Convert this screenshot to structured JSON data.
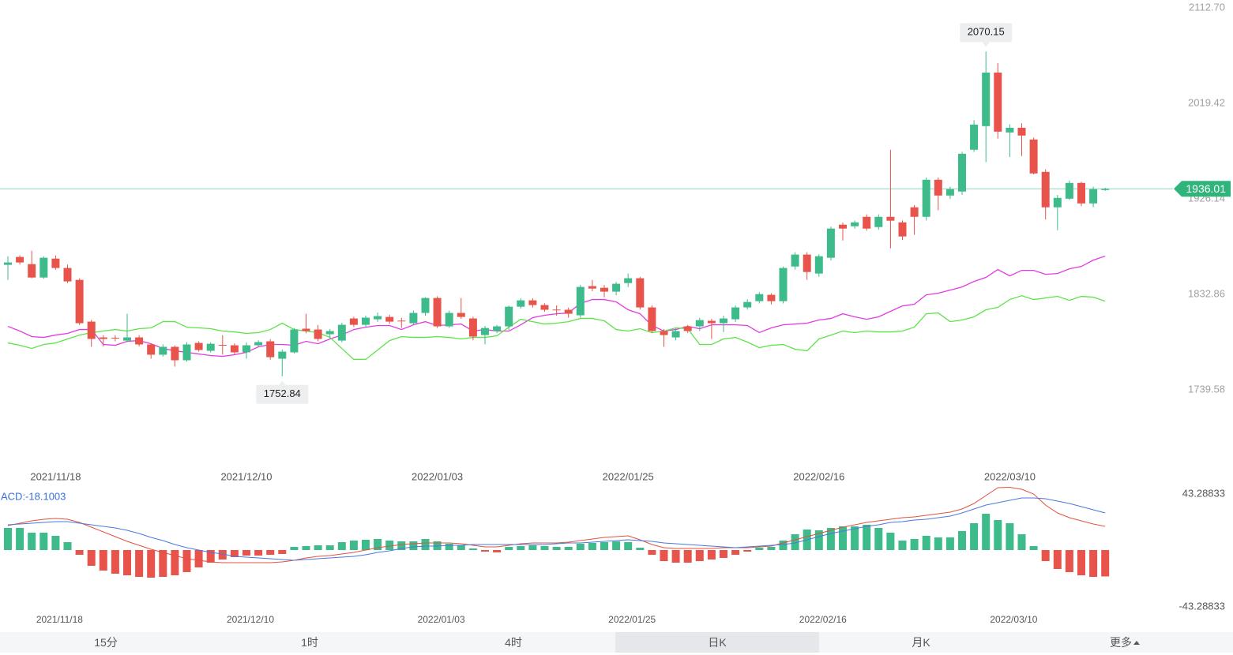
{
  "chart_data": [
    {
      "type": "candlestick",
      "categories": [
        null,
        null,
        null,
        null,
        "2021/11/18",
        null,
        null,
        null,
        null,
        null,
        null,
        null,
        null,
        null,
        null,
        null,
        null,
        null,
        null,
        null,
        "2021/12/10",
        null,
        null,
        null,
        null,
        null,
        null,
        null,
        null,
        null,
        null,
        null,
        null,
        null,
        null,
        null,
        "2022/01/03",
        null,
        null,
        null,
        null,
        null,
        null,
        null,
        null,
        null,
        null,
        null,
        null,
        null,
        null,
        null,
        "2022/01/25",
        null,
        null,
        null,
        null,
        null,
        null,
        null,
        null,
        null,
        null,
        null,
        null,
        null,
        null,
        null,
        "2022/02/16",
        null,
        null,
        null,
        null,
        null,
        null,
        null,
        null,
        null,
        null,
        null,
        null,
        null,
        null,
        null,
        "2022/03/10",
        null,
        null,
        null,
        null,
        null,
        null,
        null,
        null
      ],
      "open": [
        1861.7,
        1869.4,
        1862.4,
        1849.3,
        1867.8,
        1858.6,
        1847.0,
        1806.2,
        1790.8,
        1790.5,
        1787.7,
        1790.8,
        1783.9,
        1773.9,
        1781.6,
        1768.5,
        1785.4,
        1777.7,
        1783.5,
        1783.1,
        1776.2,
        1783.1,
        1787.0,
        1770.0,
        1776.2,
        1799.3,
        1798.5,
        1793.9,
        1787.7,
        1809.3,
        1803.1,
        1808.5,
        1810.8,
        1807.2,
        1804.7,
        1814.7,
        1829.3,
        1801.6,
        1814.7,
        1809.3,
        1793.1,
        1797.0,
        1801.6,
        1820.8,
        1827.0,
        1822.4,
        1818.0,
        1817.8,
        1812.4,
        1840.9,
        1839.3,
        1835.5,
        1843.9,
        1848.6,
        1820.1,
        1797.0,
        1790.8,
        1801.6,
        1801.6,
        1807.0,
        1804.7,
        1808.5,
        1820.1,
        1826.2,
        1832.4,
        1826.2,
        1860.1,
        1871.7,
        1853.2,
        1868.6,
        1900.9,
        1899.4,
        1908.6,
        1898.6,
        1908.6,
        1903.2,
        1917.9,
        1908.6,
        1944.8,
        1929.4,
        1933.3,
        1974.1,
        1997.2,
        2049.5,
        1991.0,
        1995.6,
        1984.1,
        1952.5,
        1917.9,
        1926.3,
        1941.7,
        1921.7,
        1934.8
      ],
      "high": [
        1870.1,
        1871,
        1875.5,
        1870,
        1870.9,
        1862,
        1848.6,
        1808,
        1793,
        1793,
        1813.9,
        1793,
        1785,
        1784,
        1783,
        1786,
        1787,
        1786,
        1793,
        1785,
        1786,
        1788,
        1789,
        1779,
        1800,
        1813.9,
        1803,
        1799,
        1805,
        1811,
        1812,
        1815,
        1813,
        1810,
        1817,
        1830,
        1831,
        1817,
        1829.3,
        1811,
        1802,
        1803,
        1822,
        1829,
        1829,
        1824,
        1822,
        1820,
        1842,
        1847,
        1842,
        1845,
        1853.2,
        1850,
        1822,
        1799,
        1800,
        1803,
        1810,
        1809,
        1812,
        1822,
        1828,
        1835,
        1834,
        1860,
        1874,
        1874,
        1872,
        1899,
        1903,
        1905,
        1911,
        1911,
        1974.1,
        1905,
        1920,
        1947,
        1947,
        1938,
        1972,
        2003,
        2070.15,
        2058.8,
        1999,
        2000,
        1986,
        1955,
        1930,
        1944,
        1943,
        1938,
        1937
      ],
      "low": [
        1847,
        1862,
        1848.5,
        1848,
        1857,
        1843.9,
        1803,
        1781.6,
        1782,
        1787,
        1786,
        1782,
        1770,
        1772,
        1762.3,
        1767,
        1777,
        1776,
        1774,
        1774,
        1770,
        1782,
        1769,
        1752.84,
        1775,
        1795,
        1787,
        1790,
        1786,
        1801,
        1801,
        1806,
        1804,
        1800,
        1803,
        1812,
        1800,
        1800,
        1809,
        1788,
        1784,
        1795,
        1798,
        1819,
        1820,
        1816,
        1812,
        1810,
        1810,
        1836,
        1830,
        1832,
        1840,
        1818,
        1795,
        1781.6,
        1788,
        1795,
        1797,
        1789.3,
        1796,
        1806,
        1818,
        1824,
        1823,
        1824,
        1857,
        1847,
        1850,
        1866,
        1885.5,
        1897,
        1895,
        1896,
        1877.8,
        1886,
        1891,
        1905,
        1915,
        1926,
        1930,
        1972,
        1962,
        1985,
        1967,
        1968,
        1950,
        1906,
        1895.5,
        1925,
        1919,
        1918,
        1934
      ],
      "close": [
        1864.0,
        1864.0,
        1849.3,
        1868.6,
        1858.6,
        1845.5,
        1804.7,
        1789.3,
        1789.3,
        1790.0,
        1790.8,
        1783.9,
        1773.9,
        1781.6,
        1768.5,
        1783.9,
        1778.5,
        1784.6,
        1783.1,
        1776.2,
        1783.1,
        1786.2,
        1771.5,
        1776.9,
        1798.5,
        1797.0,
        1789.3,
        1797.0,
        1803.1,
        1803.1,
        1810.1,
        1811.6,
        1806.2,
        1807.0,
        1814.7,
        1829.3,
        1801.6,
        1814.7,
        1810.8,
        1791.6,
        1800.0,
        1801.6,
        1820.8,
        1827.0,
        1822.4,
        1817.8,
        1817.8,
        1813.9,
        1840.1,
        1838.5,
        1835.5,
        1843.2,
        1848.6,
        1820.1,
        1797.0,
        1793.1,
        1797.0,
        1797.0,
        1807.7,
        1804.7,
        1809.3,
        1820.1,
        1825.4,
        1833.1,
        1826.2,
        1858.6,
        1871.7,
        1854.7,
        1870.1,
        1897.1,
        1897.1,
        1903.2,
        1897.1,
        1908.6,
        1904.8,
        1889.4,
        1908.6,
        1944.8,
        1929.4,
        1935.6,
        1970.2,
        1998.7,
        2049.5,
        1991.8,
        1995.6,
        1988.0,
        1951.0,
        1917.9,
        1927.1,
        1941.7,
        1921.7,
        1935.6,
        1936.01
      ],
      "up_color": "#3dbb8a",
      "down_color": "#e8534b",
      "price_line_color": "#8fd6c2",
      "price_tag_color": "#2fb57b",
      "ma_lines": [
        {
          "color": "#e23ce0",
          "values": [
            1801.6,
            1797.0,
            1791.6,
            1790.8,
            1793.1,
            1794.7,
            1798.5,
            1798.5,
            1783.9,
            1783.1,
            1787.0,
            1787.7,
            1784.6,
            1780.0,
            1777.7,
            1776.2,
            1774.6,
            1773.1,
            1772.3,
            1773.9,
            1776.2,
            1781.6,
            1783.9,
            1783.9,
            1783.1,
            1787.0,
            1784.6,
            1789.3,
            1793.1,
            1798.5,
            1800.8,
            1802.4,
            1802.4,
            1798.5,
            1803.1,
            1806.2,
            1802.4,
            1803.1,
            1803.9,
            1797.0,
            1798.5,
            1797.0,
            1797.0,
            1803.1,
            1810.1,
            1812.4,
            1813.9,
            1814.7,
            1824.0,
            1827.8,
            1827.8,
            1825.5,
            1817.8,
            1813.9,
            1802.4,
            1797.0,
            1798.5,
            1801.6,
            1799.3,
            1803.1,
            1803.1,
            1803.1,
            1802.4,
            1795.5,
            1800.1,
            1803.1,
            1803.9,
            1804.7,
            1807.8,
            1809.3,
            1813.9,
            1810.9,
            1808.5,
            1810.9,
            1816.3,
            1821.6,
            1823.2,
            1832.4,
            1834.0,
            1837.0,
            1840.1,
            1845.5,
            1849.4,
            1857.1,
            1850.9,
            1856.3,
            1856.3,
            1852.4,
            1853.2,
            1857.8,
            1860.1,
            1866.3,
            1870.2
          ]
        },
        {
          "color": "#5ee34a",
          "values": [
            1785.4,
            1783.1,
            1780.0,
            1783.9,
            1785.4,
            1789.3,
            1793.1,
            1795.5,
            1797.0,
            1798.5,
            1797.0,
            1799.3,
            1800.1,
            1806.2,
            1806.2,
            1800.8,
            1800.1,
            1799.3,
            1797.0,
            1796.2,
            1794.7,
            1795.5,
            1798.5,
            1804.7,
            1798.5,
            1797.0,
            1795.5,
            1790.8,
            1780.0,
            1769.3,
            1769.3,
            1778.5,
            1787.7,
            1791.6,
            1790.8,
            1790.8,
            1791.6,
            1790.8,
            1789.3,
            1790.8,
            1790.8,
            1792.4,
            1800.8,
            1808.5,
            1806.2,
            1803.9,
            1804.7,
            1806.2,
            1809.3,
            1809.3,
            1807.0,
            1798.5,
            1797.0,
            1799.3,
            1795.5,
            1797.0,
            1800.1,
            1799.3,
            1783.9,
            1783.9,
            1789.3,
            1790.8,
            1786.2,
            1780.8,
            1783.1,
            1783.9,
            1779.3,
            1777.7,
            1789.3,
            1793.1,
            1797.0,
            1795.5,
            1797.0,
            1796.2,
            1796.2,
            1797.0,
            1800.8,
            1813.9,
            1814.7,
            1806.2,
            1807.8,
            1810.9,
            1817.8,
            1820.1,
            1827.8,
            1831.6,
            1827.8,
            1829.3,
            1830.9,
            1827.0,
            1830.9,
            1830.1,
            1826.2
          ]
        }
      ],
      "ylim": [
        1739.58,
        2112.7
      ],
      "yticks": [
        {
          "value": 2112.7,
          "label": "2112.70"
        },
        2019.42,
        1926.14,
        1832.86,
        1739.58
      ]
    },
    {
      "type": "bar",
      "label": "ACD:-18.1003",
      "label_color": "#3a6fd8",
      "categories": [
        null,
        null,
        null,
        null,
        "2021/11/18",
        null,
        null,
        null,
        null,
        null,
        null,
        null,
        null,
        null,
        null,
        null,
        null,
        null,
        null,
        null,
        "2021/12/10",
        null,
        null,
        null,
        null,
        null,
        null,
        null,
        null,
        null,
        null,
        null,
        null,
        null,
        null,
        null,
        "2022/01/03",
        null,
        null,
        null,
        null,
        null,
        null,
        null,
        null,
        null,
        null,
        null,
        null,
        null,
        null,
        null,
        "2022/01/25",
        null,
        null,
        null,
        null,
        null,
        null,
        null,
        null,
        null,
        null,
        null,
        null,
        null,
        null,
        null,
        "2022/02/16",
        null,
        null,
        null,
        null,
        null,
        null,
        null,
        null,
        null,
        null,
        null,
        null,
        null,
        null,
        null,
        "2022/03/10",
        null,
        null,
        null,
        null,
        null,
        null,
        null,
        null
      ],
      "values": [
        15.15,
        15.15,
        11.9,
        11.9,
        9.74,
        5.41,
        -3.25,
        -10.82,
        -14.07,
        -16.23,
        -17.32,
        -18.4,
        -18.94,
        -18.4,
        -17.32,
        -15.15,
        -11.9,
        -8.66,
        -6.49,
        -4.87,
        -3.79,
        -3.79,
        -3.25,
        -2.71,
        2.16,
        2.71,
        3.25,
        3.25,
        5.41,
        6.49,
        7.03,
        7.58,
        6.49,
        5.95,
        5.95,
        7.58,
        5.95,
        4.33,
        3.25,
        1.08,
        -1.08,
        -1.62,
        2.16,
        2.71,
        3.25,
        2.71,
        2.16,
        2.16,
        4.33,
        4.87,
        5.41,
        5.95,
        5.41,
        1.62,
        -3.25,
        -7.58,
        -8.66,
        -8.66,
        -7.58,
        -6.49,
        -5.41,
        -3.25,
        -1.08,
        1.62,
        2.16,
        6.49,
        10.82,
        14.07,
        13.53,
        15.15,
        16.23,
        16.23,
        17.32,
        15.15,
        11.9,
        6.49,
        7.58,
        9.74,
        8.66,
        8.66,
        12.99,
        18.4,
        24.89,
        20.56,
        18.4,
        10.82,
        2.71,
        -7.58,
        -12.99,
        -15.15,
        -17.32,
        -18.4,
        -18.1003
      ],
      "up_color": "#3dbb8a",
      "down_color": "#e8534b",
      "lines": [
        {
          "color": "#e0533f",
          "values": [
            16.77,
            18.4,
            20.02,
            21.1,
            21.64,
            21.1,
            18.94,
            15.69,
            12.45,
            9.2,
            5.95,
            3.25,
            0.54,
            -1.62,
            -3.79,
            -5.95,
            -7.03,
            -8.12,
            -8.66,
            -8.66,
            -8.66,
            -8.66,
            -8.66,
            -8.12,
            -7.03,
            -5.41,
            -4.33,
            -3.79,
            -2.71,
            -1.62,
            0,
            1.62,
            2.71,
            3.79,
            4.33,
            4.87,
            4.87,
            4.87,
            4.33,
            3.25,
            2.16,
            2.16,
            3.25,
            4.33,
            4.87,
            4.87,
            4.87,
            5.41,
            6.49,
            7.58,
            8.66,
            9.2,
            9.74,
            7.03,
            3.79,
            1.62,
            1.08,
            1.08,
            1.08,
            1.08,
            1.62,
            1.62,
            1.62,
            2.16,
            2.71,
            4.87,
            7.03,
            9.2,
            11.36,
            13.53,
            15.69,
            17.32,
            18.94,
            20.02,
            21.1,
            22.19,
            22.73,
            23.81,
            24.89,
            25.97,
            28.14,
            31.92,
            37.34,
            42.75,
            43.0,
            41.66,
            38.42,
            30.84,
            25.43,
            22.19,
            20.02,
            17.86,
            16.23
          ]
        },
        {
          "color": "#4a78e0",
          "values": [
            17.32,
            17.86,
            18.4,
            18.94,
            19.48,
            19.48,
            18.4,
            17.32,
            16.23,
            15.15,
            13.53,
            11.36,
            8.66,
            6.49,
            3.79,
            1.62,
            0,
            -1.62,
            -2.71,
            -4.33,
            -4.87,
            -5.41,
            -5.95,
            -6.49,
            -7.03,
            -6.49,
            -5.95,
            -5.41,
            -4.87,
            -4.33,
            -3.25,
            -1.62,
            -0.54,
            1.08,
            2.16,
            2.71,
            2.71,
            3.25,
            3.25,
            3.79,
            3.79,
            3.79,
            3.79,
            3.79,
            3.79,
            3.79,
            4.33,
            4.87,
            4.87,
            5.41,
            5.95,
            6.49,
            7.03,
            6.49,
            5.95,
            4.87,
            4.33,
            3.79,
            3.25,
            2.71,
            2.16,
            1.62,
            2.16,
            2.71,
            3.25,
            3.79,
            4.87,
            7.03,
            9.2,
            11.36,
            12.99,
            14.61,
            16.23,
            17.32,
            18.94,
            19.48,
            20.56,
            21.1,
            22.19,
            23.27,
            25.43,
            28.14,
            30.84,
            32.47,
            34.09,
            35.71,
            35.71,
            35.17,
            33.55,
            31.92,
            29.76,
            27.6,
            25.43
          ]
        }
      ],
      "ylim": [
        -43.28833,
        43.28833
      ],
      "yticks": [
        43.28833,
        -43.28833
      ]
    }
  ],
  "tabs": [
    "15分",
    "1时",
    "4时",
    "日K",
    "月K",
    "更多"
  ],
  "selected_tab": 3
}
